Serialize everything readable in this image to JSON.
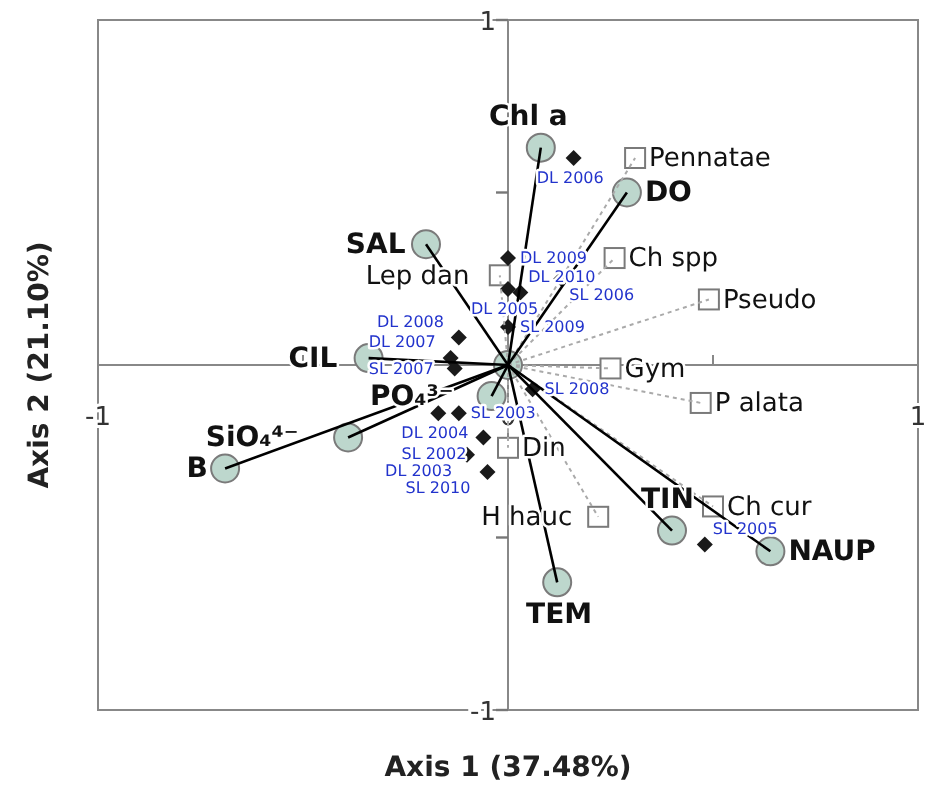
{
  "chart_data": {
    "type": "scatter",
    "xlabel": "Axis 1 (37.48%)",
    "ylabel": "Axis 2 (21.10%)",
    "xlim": [
      -1,
      1
    ],
    "ylim": [
      -1,
      1
    ],
    "xticks": [
      -1,
      {
        "value": -0.5,
        "label": null
      },
      0,
      {
        "value": 0.5,
        "label": null
      },
      1
    ],
    "yticks": [
      -1,
      {
        "value": -0.5,
        "label": null
      },
      {
        "value": 0.5,
        "label": null
      },
      1
    ],
    "grid": false,
    "series": [
      {
        "type": "line",
        "color": "#aaaaaa",
        "line_style": "dotted",
        "x": [
          0,
          0.31
        ],
        "values": [
          0,
          0.6
        ]
      },
      {
        "type": "line",
        "color": "#aaaaaa",
        "line_style": "dotted",
        "x": [
          0,
          0.26
        ],
        "values": [
          0,
          0.31
        ]
      },
      {
        "type": "line",
        "color": "#aaaaaa",
        "line_style": "dotted",
        "x": [
          0,
          0.49
        ],
        "values": [
          0,
          0.19
        ]
      },
      {
        "type": "line",
        "color": "#aaaaaa",
        "line_style": "dotted",
        "x": [
          0,
          0.25
        ],
        "values": [
          0,
          -0.01
        ]
      },
      {
        "type": "line",
        "color": "#aaaaaa",
        "line_style": "dotted",
        "x": [
          0,
          0.47
        ],
        "values": [
          0,
          -0.11
        ]
      },
      {
        "type": "line",
        "color": "#aaaaaa",
        "line_style": "dotted",
        "x": [
          0,
          0.5
        ],
        "values": [
          0,
          -0.41
        ]
      },
      {
        "type": "line",
        "color": "#aaaaaa",
        "line_style": "dotted",
        "x": [
          0,
          0.22
        ],
        "values": [
          0,
          -0.44
        ]
      },
      {
        "type": "line",
        "color": "#aaaaaa",
        "line_style": "dotted",
        "x": [
          0,
          0
        ],
        "values": [
          0,
          -0.24
        ]
      },
      {
        "type": "line",
        "color": "#aaaaaa",
        "line_style": "dotted",
        "x": [
          0,
          -0.02
        ],
        "values": [
          0,
          0.26
        ]
      },
      {
        "type": "line",
        "color": "#000000",
        "line_style": "solid",
        "x": [
          0,
          0.08
        ],
        "values": [
          0,
          0.63
        ]
      },
      {
        "type": "line",
        "color": "#000000",
        "line_style": "solid",
        "x": [
          0,
          0.29
        ],
        "values": [
          0,
          0.5
        ]
      },
      {
        "type": "line",
        "color": "#000000",
        "line_style": "solid",
        "x": [
          0,
          -0.2
        ],
        "values": [
          0,
          0.35
        ]
      },
      {
        "type": "line",
        "color": "#000000",
        "line_style": "solid",
        "x": [
          0,
          -0.34
        ],
        "values": [
          0,
          0.02
        ]
      },
      {
        "type": "line",
        "color": "#000000",
        "line_style": "solid",
        "x": [
          0,
          -0.69
        ],
        "values": [
          0,
          -0.3
        ]
      },
      {
        "type": "line",
        "color": "#000000",
        "line_style": "solid",
        "x": [
          0,
          -0.39
        ],
        "values": [
          0,
          -0.21
        ]
      },
      {
        "type": "line",
        "color": "#000000",
        "line_style": "solid",
        "x": [
          0,
          -0.04
        ],
        "values": [
          0,
          -0.09
        ]
      },
      {
        "type": "line",
        "color": "#000000",
        "line_style": "solid",
        "x": [
          0,
          0.12
        ],
        "values": [
          0,
          -0.63
        ]
      },
      {
        "type": "line",
        "color": "#000000",
        "line_style": "solid",
        "x": [
          0,
          0.4
        ],
        "values": [
          0,
          -0.48
        ]
      },
      {
        "type": "line",
        "color": "#000000",
        "line_style": "solid",
        "x": [
          0,
          0.64
        ],
        "values": [
          0,
          -0.54
        ]
      },
      {
        "marker": "square",
        "color": "#ffffff",
        "x": [
          0.31,
          0.26,
          0.49,
          0.25,
          0.47,
          0.5,
          0.22,
          0,
          -0.02
        ],
        "values": [
          0.6,
          0.31,
          0.19,
          -0.01,
          -0.11,
          -0.41,
          -0.44,
          -0.24,
          0.26
        ],
        "value_labels": [
          "Pennatae",
          "Ch  spp",
          "Pseudo",
          "Gym",
          "P alata",
          "Ch cur",
          "H hauc",
          "Din",
          "Lep dan"
        ]
      },
      {
        "marker": "diamond",
        "color": "#1a1a1a",
        "x": [
          0.16,
          0,
          0,
          0.13,
          0.03,
          0,
          -0.12,
          -0.14,
          -0.13,
          0.06,
          -0.17,
          -0.12,
          -0.06,
          -0.1,
          -0.05,
          0.48
        ],
        "values": [
          0.6,
          0.31,
          0.22,
          0.25,
          0.21,
          0.11,
          0.08,
          0.02,
          -0.01,
          -0.07,
          -0.14,
          -0.14,
          -0.21,
          -0.26,
          -0.31,
          -0.52
        ],
        "value_labels": [
          "DL 2006",
          "DL 2009",
          "DL 2005",
          "SL 2006",
          "DL 2010",
          "SL 2009",
          "DL 2008",
          "DL 2007",
          "SL 2007",
          "SL 2008",
          "DL 2004",
          "SL 2003",
          "SL 2002",
          "DL 2003",
          "SL 2010",
          "SL 2005"
        ]
      },
      {
        "marker": "circle",
        "color": "#bdd7cd",
        "x": [
          0.08,
          0.29,
          -0.2,
          -0.34,
          -0.69,
          -0.39,
          -0.04,
          0.12,
          0.4,
          0.64,
          0
        ],
        "values": [
          0.63,
          0.5,
          0.35,
          0.02,
          -0.3,
          -0.21,
          -0.09,
          -0.63,
          -0.48,
          -0.54,
          0
        ],
        "value_labels": [
          "Chl a",
          "DO",
          "SAL",
          "CIL",
          "B",
          "SiO₄⁴⁻",
          "PO₄³⁻",
          "TEM",
          "TIN",
          "NAUP",
          null
        ]
      }
    ]
  }
}
